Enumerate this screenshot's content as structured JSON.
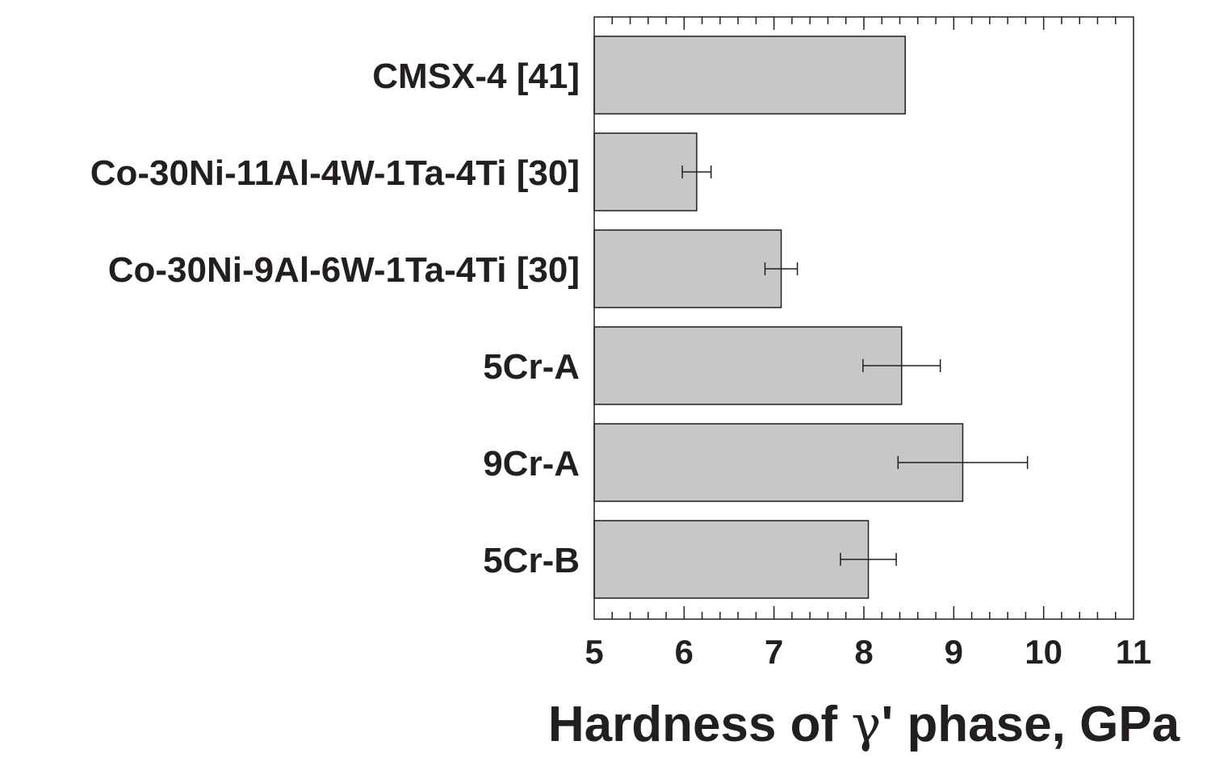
{
  "chart_data": {
    "type": "bar",
    "orientation": "horizontal",
    "categories": [
      "CMSX-4 [41]",
      "Co-30Ni-11Al-4W-1Ta-4Ti [30]",
      "Co-30Ni-9Al-6W-1Ta-4Ti [30]",
      "5Cr-A",
      "9Cr-A",
      "5Cr-B"
    ],
    "values": [
      8.46,
      6.14,
      7.08,
      8.42,
      9.1,
      8.05
    ],
    "error": [
      null,
      0.16,
      0.18,
      0.43,
      0.72,
      0.31
    ],
    "title": "",
    "xlabel_before": "Hardness of ",
    "xlabel_symbol": "γ",
    "xlabel_after": "' phase, GPa",
    "ylabel": "",
    "xlim": [
      5,
      11
    ],
    "xticks": [
      "5",
      "6",
      "7",
      "8",
      "9",
      "10",
      "11"
    ],
    "grid": false,
    "legend": "none",
    "colors": {
      "bar_fill": "#c6c7c9",
      "bar_stroke": "#231f20",
      "axis": "#231f20",
      "text": "#231f20"
    }
  }
}
